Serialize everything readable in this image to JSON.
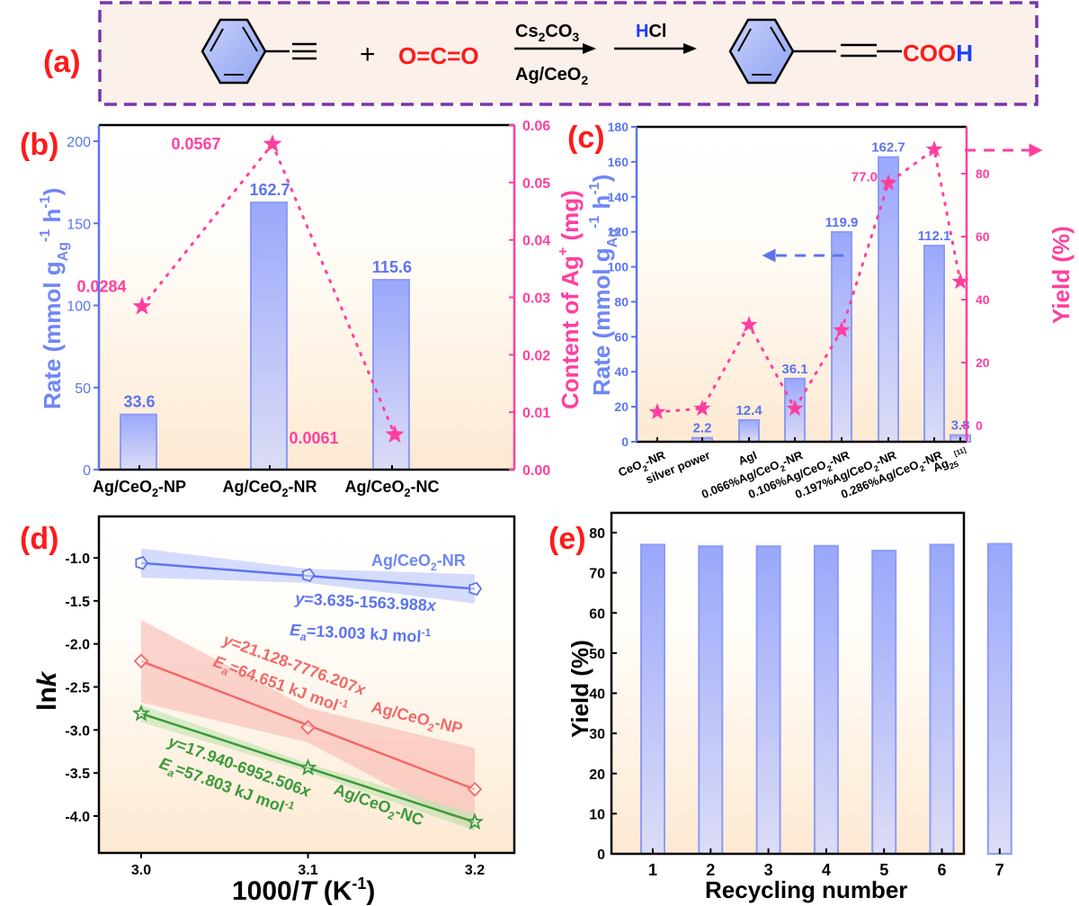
{
  "panel_a": {
    "label": "(a)",
    "plus": "+",
    "co2": "O=C=O",
    "reagent_top": "Cs2CO3",
    "reagent_bottom": "Ag/CeO2",
    "acid_h": "H",
    "acid_cl": "Cl",
    "product_cooh": "COO",
    "product_h": "H"
  },
  "chart_data": [
    {
      "id": "b",
      "panel_label": "(b)",
      "type": "bar",
      "categories": [
        "Ag/CeO2-NP",
        "Ag/CeO2-NR",
        "Ag/CeO2-NC"
      ],
      "series": [
        {
          "name": "Rate",
          "axis": "left",
          "type": "bar",
          "values": [
            33.6,
            162.7,
            115.6
          ],
          "labels": [
            "33.6",
            "162.7",
            "115.6"
          ]
        },
        {
          "name": "Content of Ag+",
          "axis": "right",
          "type": "line-star",
          "values": [
            0.0284,
            0.0567,
            0.0061
          ],
          "labels": [
            "0.0284",
            "0.0567",
            "0.0061"
          ]
        }
      ],
      "ylabel": "Rate (mmol gAg-1 h-1)",
      "y2label": "Content of Ag+ (mg)",
      "ylim": [
        0,
        210
      ],
      "yticks": [
        0,
        50,
        100,
        150,
        200
      ],
      "y2lim": [
        0,
        0.06
      ],
      "y2ticks": [
        "0.00",
        "0.01",
        "0.02",
        "0.03",
        "0.04",
        "0.05",
        "0.06"
      ],
      "colors": {
        "bar": "#6f86f5",
        "star": "#ff3fa0",
        "left_axis": "#5b74f0",
        "right_axis": "#ff3fa0"
      }
    },
    {
      "id": "c",
      "panel_label": "(c)",
      "type": "bar",
      "categories": [
        "CeO2-NR",
        "silver power",
        "AgI",
        "0.066%Ag/CeO2-NR",
        "0.106%Ag/CeO2-NR",
        "0.197%Ag/CeO2-NR",
        "0.286%Ag/CeO2-NR",
        "Ag25[11]"
      ],
      "series": [
        {
          "name": "Rate",
          "axis": "left",
          "type": "bar",
          "values": [
            null,
            2.2,
            12.4,
            36.1,
            119.9,
            162.7,
            112.1,
            3.8
          ],
          "labels": [
            "",
            "2.2",
            "12.4",
            "36.1",
            "119.9",
            "162.7",
            "112.1",
            "3.8"
          ]
        },
        {
          "name": "Yield",
          "axis": "right",
          "type": "line-star",
          "values": [
            4.3,
            5.4,
            32.0,
            5.4,
            30.3,
            77.0,
            87.7,
            45.7
          ],
          "labels": [
            "",
            "",
            "",
            "",
            "",
            "77.0",
            "",
            ""
          ]
        }
      ],
      "ylabel": "Rate (mmol gAg-1 h-1)",
      "y2label": "Yield (%)",
      "ylim": [
        0,
        180
      ],
      "yticks": [
        0,
        20,
        40,
        60,
        80,
        100,
        120,
        140,
        160,
        180
      ],
      "y2lim": [
        -5,
        95
      ],
      "y2ticks": [
        0,
        20,
        40,
        60,
        80
      ],
      "annotations": [
        "left dashed arrow at rate ≈107 pointing to left axis",
        "right dashed arrow at yield ≈88 pointing to right axis"
      ]
    },
    {
      "id": "d",
      "panel_label": "(d)",
      "type": "line",
      "xlabel": "1000/T (K-1)",
      "ylabel": "lnk",
      "xlim": [
        2.97,
        3.22
      ],
      "ylim": [
        -4.4,
        -0.6
      ],
      "xticks": [
        "3.0",
        "3.1",
        "3.2"
      ],
      "yticks": [
        "-1.0",
        "-1.5",
        "-2.0",
        "-2.5",
        "-3.0",
        "-3.5",
        "-4.0"
      ],
      "series": [
        {
          "name": "Ag/CeO2-NR",
          "color": "#5b74f0",
          "x": [
            3.0,
            3.1,
            3.2
          ],
          "y": [
            -1.06,
            -1.2,
            -1.36
          ],
          "equation": "y=3.635-1563.988x",
          "ea": "=13.003 kJ mol",
          "marker": "pentagon"
        },
        {
          "name": "Ag/CeO2-NP",
          "color": "#f06a6a",
          "x": [
            3.0,
            3.1,
            3.2
          ],
          "y": [
            -2.2,
            -2.97,
            -3.69
          ],
          "equation": "y=21.128-7776.207x",
          "ea": "=64.651 kJ mol",
          "marker": "diamond"
        },
        {
          "name": "Ag/CeO2-NC",
          "color": "#3a9a3a",
          "x": [
            3.0,
            3.1,
            3.2
          ],
          "y": [
            -2.81,
            -3.44,
            -4.07
          ],
          "equation": "y=17.940-6952.506x",
          "ea": "=57.803 kJ mol",
          "marker": "star"
        }
      ]
    },
    {
      "id": "e",
      "panel_label": "(e)",
      "type": "bar",
      "categories": [
        "1",
        "2",
        "3",
        "4",
        "5",
        "6",
        "7"
      ],
      "values": [
        77.0,
        76.6,
        76.6,
        76.7,
        75.5,
        77.0,
        77.2
      ],
      "xlabel": "Recycling number",
      "ylabel": "Yield (%)",
      "ylim": [
        0,
        85
      ],
      "yticks": [
        0,
        10,
        20,
        30,
        40,
        50,
        60,
        70,
        80
      ]
    }
  ]
}
